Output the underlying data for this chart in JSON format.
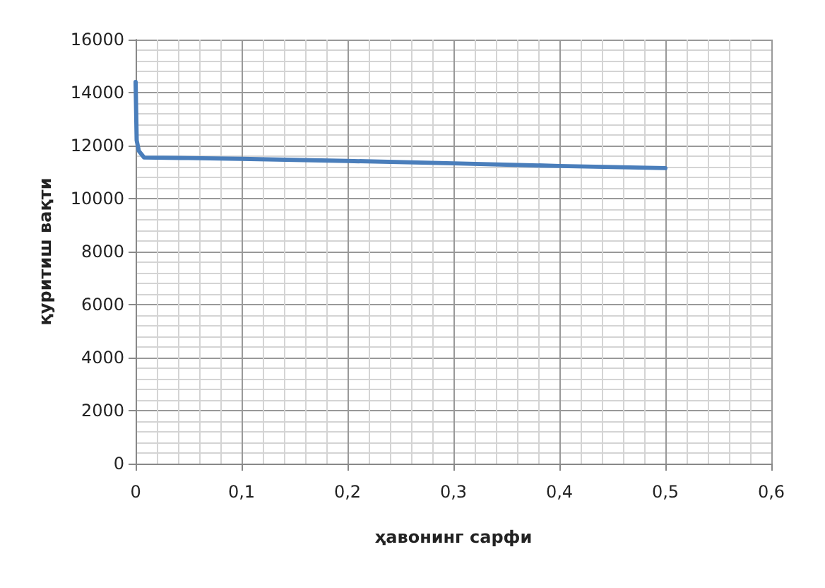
{
  "chart_data": {
    "type": "line",
    "xlabel": "ҳавонинг сарфи",
    "ylabel": "қуритиш вақти",
    "x": [
      0,
      0.001,
      0.003,
      0.008,
      0.05,
      0.1,
      0.2,
      0.3,
      0.4,
      0.5
    ],
    "series": [
      {
        "color": "#4a7ebb",
        "values": [
          14400,
          12200,
          11800,
          11550,
          11530,
          11500,
          11420,
          11330,
          11230,
          11150
        ]
      }
    ],
    "xlim": [
      0,
      0.6
    ],
    "xticks": [
      0,
      {
        "value": 0.1,
        "label": "0,1"
      },
      {
        "value": 0.2,
        "label": "0,2"
      },
      {
        "value": 0.3,
        "label": "0,3"
      },
      {
        "value": 0.4,
        "label": "0,4"
      },
      {
        "value": 0.5,
        "label": "0,5"
      },
      {
        "value": 0.6,
        "label": "0,6"
      }
    ],
    "ylim": [
      0,
      16000
    ],
    "yticks": [
      0,
      2000,
      4000,
      6000,
      8000,
      10000,
      12000,
      14000,
      16000
    ],
    "grid": true,
    "marker": "none",
    "line_style": "solid"
  }
}
